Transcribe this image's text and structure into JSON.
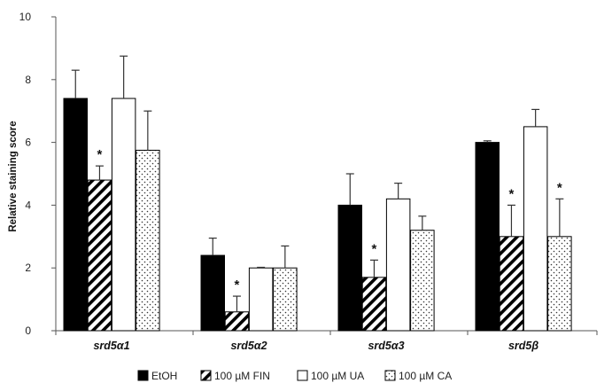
{
  "chart_data": {
    "type": "bar",
    "ylabel": "Relative staining score",
    "ylim": [
      0,
      10
    ],
    "yticks": [
      0,
      2,
      4,
      6,
      8,
      10
    ],
    "grid": false,
    "legend_position": "bottom",
    "categories": [
      "srd5α1",
      "srd5α2",
      "srd5α3",
      "srd5β"
    ],
    "series": [
      {
        "name": "EtOH",
        "fill": "solid",
        "color": "#000000",
        "values": [
          7.4,
          2.4,
          4.0,
          6.0
        ],
        "errors": [
          0.9,
          0.55,
          1.0,
          0.05
        ],
        "significant": [
          false,
          false,
          false,
          false
        ]
      },
      {
        "name": "100 µM FIN",
        "fill": "hatch",
        "color": "#000000",
        "values": [
          4.8,
          0.6,
          1.7,
          3.0
        ],
        "errors": [
          0.45,
          0.5,
          0.55,
          1.0
        ],
        "significant": [
          true,
          true,
          true,
          true
        ]
      },
      {
        "name": "100 µM UA",
        "fill": "open",
        "color": "#ffffff",
        "values": [
          7.4,
          2.0,
          4.2,
          6.5
        ],
        "errors": [
          1.35,
          0.02,
          0.5,
          0.55
        ],
        "significant": [
          false,
          false,
          false,
          false
        ]
      },
      {
        "name": "100 µM CA",
        "fill": "dots",
        "color": "#ffffff",
        "values": [
          5.75,
          2.0,
          3.2,
          3.0
        ],
        "errors": [
          1.25,
          0.7,
          0.45,
          1.2
        ],
        "significant": [
          false,
          false,
          false,
          true
        ]
      }
    ],
    "significance_marker": "*"
  }
}
